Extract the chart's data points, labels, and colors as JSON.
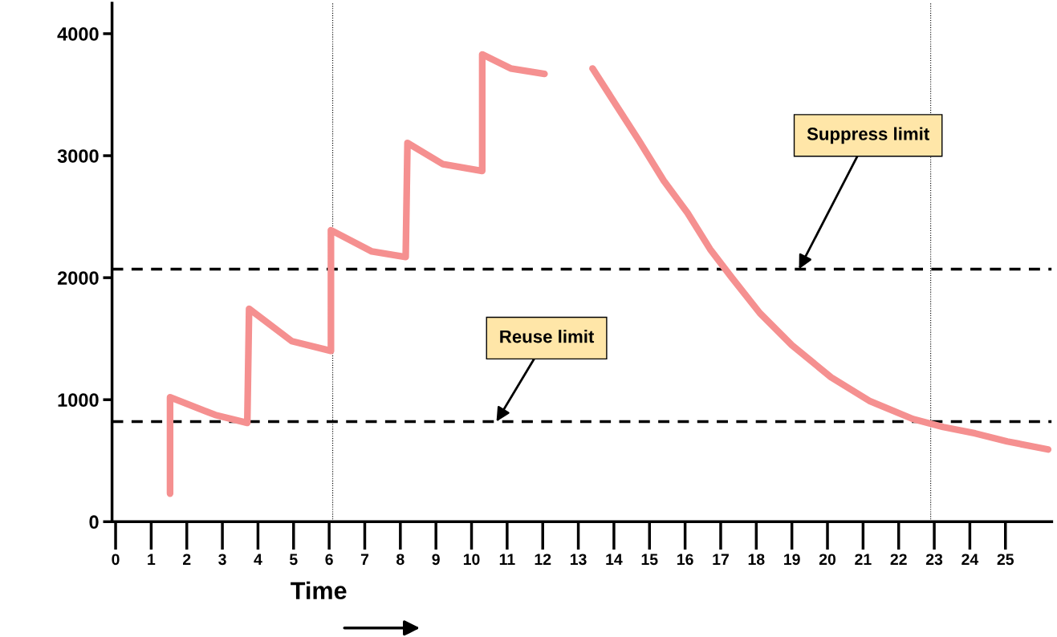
{
  "chart_data": {
    "type": "line",
    "xlabel": "Time",
    "x": [
      1.53,
      1.53,
      2.8,
      3.7,
      3.75,
      4.95,
      6.05,
      6.05,
      7.2,
      8.15,
      8.2,
      9.2,
      10.3,
      10.3,
      11.1,
      12.05,
      12.2,
      12.5,
      13.4,
      14.05,
      14.7,
      15.4,
      16.07,
      16.7,
      17.3,
      18.1,
      19,
      20.1,
      21.2,
      22.4,
      23.25,
      24.15,
      25.05,
      26.2
    ],
    "series": [
      {
        "color": "#f59090",
        "values": [
          230,
          1020,
          875,
          810,
          1745,
          1480,
          1400,
          2390,
          2215,
          2170,
          3105,
          2930,
          2875,
          3830,
          3715,
          3670,
          null,
          null,
          3715,
          3420,
          3125,
          2795,
          2530,
          2235,
          2005,
          1710,
          1447,
          1184,
          987,
          842,
          776,
          724,
          658,
          592
        ]
      }
    ],
    "xlim": [
      -0.1,
      26.3
    ],
    "ylim": [
      0,
      4250
    ],
    "xticks": [
      0,
      1,
      2,
      3,
      4,
      5,
      6,
      7,
      8,
      9,
      10,
      11,
      12,
      13,
      14,
      15,
      16,
      17,
      18,
      19,
      20,
      21,
      22,
      23,
      24,
      25
    ],
    "yticks": [
      0,
      1000,
      2000,
      3000,
      4000
    ],
    "ref_lines": [
      {
        "axis": "y",
        "value": 2070,
        "line_style": "dashed",
        "color": "#000000"
      },
      {
        "axis": "y",
        "value": 820,
        "line_style": "dashed",
        "color": "#000000"
      },
      {
        "axis": "x",
        "value": 6.1,
        "line_style": "dotted",
        "color": "#000000"
      },
      {
        "axis": "x",
        "value": 22.9,
        "line_style": "dotted",
        "color": "#000000"
      }
    ],
    "annotations": [
      {
        "text": "Suppress limit",
        "x": 19.2,
        "y": 2070
      },
      {
        "text": "Reuse limit",
        "x": 10.7,
        "y": 820
      }
    ],
    "grid": false,
    "legend": false,
    "marker": "none",
    "line_style": "solid"
  }
}
